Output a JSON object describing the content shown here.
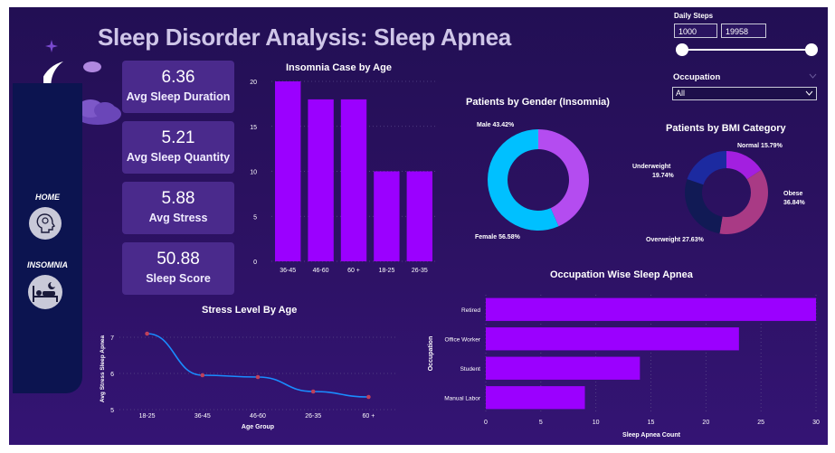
{
  "title": "Sleep Disorder Analysis: Sleep Apnea",
  "kpis": [
    {
      "value": "6.36",
      "label": "Avg Sleep Duration"
    },
    {
      "value": "5.21",
      "label": "Avg Sleep Quantity"
    },
    {
      "value": "5.88",
      "label": "Avg Stress"
    },
    {
      "value": "50.88",
      "label": "Sleep Score"
    }
  ],
  "nav": {
    "home_label": "HOME",
    "insomnia_label": "INSOMNIA"
  },
  "icons": {
    "logo": "moon-cloud-icon",
    "home": "head-gear-icon",
    "insomnia": "sleeping-person-icon",
    "sparkle": "sparkle-icon"
  },
  "filters": {
    "steps_label": "Daily Steps",
    "steps_min": "1000",
    "steps_max": "19958",
    "occupation_label": "Occupation",
    "occupation_value": "All"
  },
  "colors": {
    "bar": "#9b00ff",
    "line": "#1a8cff",
    "marker": "#c0405a",
    "male": "#b44cf0",
    "female": "#00c0ff",
    "normal": "#a31fe0",
    "obese": "#a93a85",
    "overweight": "#111a55",
    "underweight": "#1c2aa0"
  },
  "chart_data": [
    {
      "id": "insomnia-age",
      "type": "bar",
      "title": "Insomnia Case by Age",
      "categories": [
        "36-45",
        "46-60",
        "60 +",
        "18-25",
        "26-35"
      ],
      "values": [
        20,
        18,
        18,
        10,
        10
      ],
      "ylim": [
        0,
        20
      ],
      "yticks": [
        "0",
        "5",
        "10",
        "15",
        "20"
      ],
      "grid": true
    },
    {
      "id": "gender-insomnia",
      "type": "pie",
      "title": "Patients by Gender (Insomnia)",
      "labels": [
        "Male",
        "Female"
      ],
      "values": [
        43.42,
        56.58
      ],
      "display": [
        "Male 43.42%",
        "Female 56.58%"
      ]
    },
    {
      "id": "bmi",
      "type": "pie",
      "title": "Patients by BMI Category",
      "labels": [
        "Normal",
        "Obese",
        "Overweight",
        "Underweight"
      ],
      "values": [
        15.79,
        36.84,
        27.63,
        19.74
      ],
      "display": [
        "Normal 15.79%",
        "Obese 36.84%",
        "Overweight 27.63%",
        "Underweight 19.74%"
      ]
    },
    {
      "id": "stress-age",
      "type": "line",
      "title": "Stress Level By Age",
      "xlabel": "Age Group",
      "ylabel": "Avg Stress Sleep Apnea",
      "categories": [
        "18-25",
        "36-45",
        "46-60",
        "26-35",
        "60 +"
      ],
      "values": [
        7.1,
        5.95,
        5.9,
        5.5,
        5.35
      ],
      "ylim": [
        5,
        7
      ],
      "yticks": [
        "5",
        "6",
        "7"
      ]
    },
    {
      "id": "occupation-apnea",
      "type": "bar",
      "orientation": "horizontal",
      "title": "Occupation Wise Sleep Apnea",
      "xlabel": "Sleep Apnea Count",
      "ylabel": "Occupation",
      "categories": [
        "Retired",
        "Office Worker",
        "Student",
        "Manual Labor"
      ],
      "values": [
        30,
        23,
        14,
        9
      ],
      "xlim": [
        0,
        30
      ],
      "xticks": [
        "0",
        "5",
        "10",
        "15",
        "20",
        "25",
        "30"
      ]
    }
  ]
}
